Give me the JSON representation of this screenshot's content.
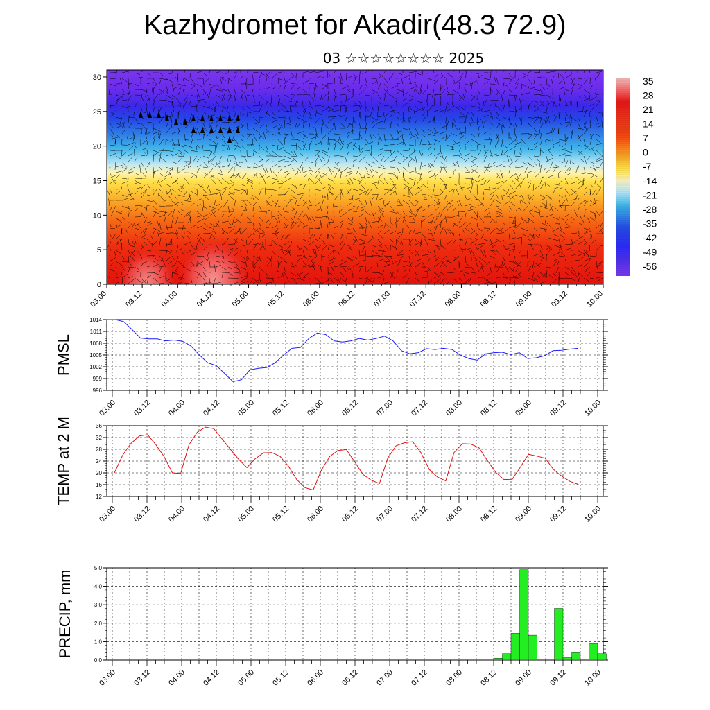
{
  "header": {
    "title": "Kazhydromet for Akadir(48.3 72.9)",
    "subtitle": "03 ☆☆☆☆☆☆☆☆ 2025"
  },
  "chart_data": [
    {
      "type": "heatmap",
      "title": "Kazhydromet for Akadir(48.3 72.9)",
      "x_tick_labels": [
        "03.00",
        "03.12",
        "04.00",
        "04.12",
        "05.00",
        "05.12",
        "06.00",
        "06.12",
        "07.00",
        "07.12",
        "08.00",
        "08.12",
        "09.00",
        "09.12",
        "10.00"
      ],
      "y_ticks": [
        0,
        5,
        10,
        15,
        20,
        25,
        30
      ],
      "ylim": [
        0,
        31
      ],
      "colorbar_labels": [
        "35",
        "28",
        "21",
        "14",
        "7",
        "0",
        "-7",
        "-14",
        "-21",
        "-28",
        "-35",
        "-42",
        "-49",
        "-56"
      ],
      "colorbar_values": [
        35,
        28,
        21,
        14,
        7,
        0,
        -7,
        -14,
        -21,
        -28,
        -35,
        -42,
        -49,
        -56
      ],
      "overlay": "wind vectors",
      "colors": {
        "warm": "#e8120c",
        "hot": "#f07070",
        "yellow": "#ffe640",
        "cyan": "#22bbee",
        "blue": "#2233ee",
        "violet": "#7a2cf0"
      }
    },
    {
      "type": "line",
      "ylabel": "PMSL",
      "x_tick_labels": [
        "03.00",
        "03.12",
        "04.00",
        "04.12",
        "05.00",
        "05.12",
        "06.00",
        "06.12",
        "07.00",
        "07.12",
        "08.00",
        "08.12",
        "09.00",
        "09.12",
        "10.00"
      ],
      "y_ticks": [
        996,
        999,
        1002,
        1005,
        1008,
        1011,
        1014
      ],
      "ylim": [
        996,
        1014
      ],
      "color": "#1a1aff",
      "x": [
        0,
        1,
        2,
        3,
        4,
        5,
        6,
        7,
        8,
        9,
        10,
        11,
        12,
        13,
        14,
        15,
        16,
        17,
        18,
        19,
        20,
        21,
        22,
        23,
        24,
        25,
        26,
        27,
        28,
        29,
        30,
        31,
        32,
        33,
        34,
        35,
        36,
        37,
        38,
        39,
        40,
        41,
        42,
        43,
        44,
        45,
        46,
        47,
        48,
        49,
        50,
        51,
        52,
        53,
        54,
        55,
        56
      ],
      "values": [
        1014,
        1014,
        1013.5,
        1011.5,
        1009.3,
        1009.1,
        1009.1,
        1008.6,
        1008.8,
        1008.5,
        1007.3,
        1005,
        1003,
        1002.3,
        1000.3,
        998.2,
        998.7,
        1001.2,
        1001.6,
        1001.8,
        1003,
        1005,
        1006.7,
        1006.9,
        1009.2,
        1010.6,
        1010.2,
        1008.6,
        1008.3,
        1008.6,
        1009.2,
        1008.8,
        1009.2,
        1009.8,
        1008.6,
        1006.1,
        1005.3,
        1005.6,
        1006.6,
        1006.4,
        1006.7,
        1006.4,
        1005,
        1004.1,
        1003.7,
        1005.3,
        1005.6,
        1005.7,
        1005.1,
        1005.6,
        1004.1,
        1004.3,
        1004.8,
        1006.1,
        1006.2,
        1006.5,
        1006.7
      ]
    },
    {
      "type": "line",
      "ylabel": "TEMP at 2 M",
      "x_tick_labels": [
        "03.00",
        "03.12",
        "04.00",
        "04.12",
        "05.00",
        "05.12",
        "06.00",
        "06.12",
        "07.00",
        "07.12",
        "08.00",
        "08.12",
        "09.00",
        "09.12",
        "10.00"
      ],
      "y_ticks": [
        12,
        16,
        20,
        24,
        28,
        32,
        36
      ],
      "ylim": [
        12,
        36
      ],
      "color": "#dd1111",
      "x": [
        0,
        1,
        2,
        3,
        4,
        5,
        6,
        7,
        8,
        9,
        10,
        11,
        12,
        13,
        14,
        15,
        16,
        17,
        18,
        19,
        20,
        21,
        22,
        23,
        24,
        25,
        26,
        27,
        28,
        29,
        30,
        31,
        32,
        33,
        34,
        35,
        36,
        37,
        38,
        39,
        40,
        41,
        42,
        43,
        44,
        45,
        46,
        47,
        48,
        49,
        50,
        51,
        52,
        53,
        54,
        55,
        56
      ],
      "values": [
        20,
        26,
        30,
        32.5,
        33,
        29.6,
        25.5,
        20,
        19.8,
        29.5,
        33.8,
        35.5,
        35,
        31.5,
        28,
        24.6,
        21.8,
        24.8,
        26.8,
        26.9,
        25.6,
        22.3,
        17.8,
        15,
        14.2,
        21,
        25.6,
        27.6,
        27.9,
        23.8,
        19.5,
        17.5,
        16.4,
        25,
        29.2,
        30.2,
        30.6,
        26.9,
        21.2,
        18.6,
        17.3,
        26.9,
        29.9,
        29.8,
        28.6,
        24.3,
        20.3,
        17.8,
        17.7,
        21.9,
        26.3,
        25.7,
        25,
        21.2,
        18.9,
        17.1,
        16.1
      ]
    },
    {
      "type": "bar",
      "ylabel": "PRECIP, mm",
      "x_tick_labels": [
        "03.00",
        "03.12",
        "04.00",
        "04.12",
        "05.00",
        "05.12",
        "06.00",
        "06.12",
        "07.00",
        "07.12",
        "08.00",
        "08.12",
        "09.00",
        "09.12",
        "10.00"
      ],
      "y_tick_labels": [
        "0.0",
        "1.0",
        "2.0",
        "3.0",
        "4.0",
        "5.0"
      ],
      "ylim": [
        0,
        5
      ],
      "color": "#22ee22",
      "bins_start_hour": 132,
      "bin_hours": 3,
      "values": [
        0.1,
        0.35,
        1.45,
        4.9,
        1.35,
        0.05,
        0,
        2.8,
        0.15,
        0.4,
        0,
        0.9,
        0.35
      ]
    }
  ]
}
